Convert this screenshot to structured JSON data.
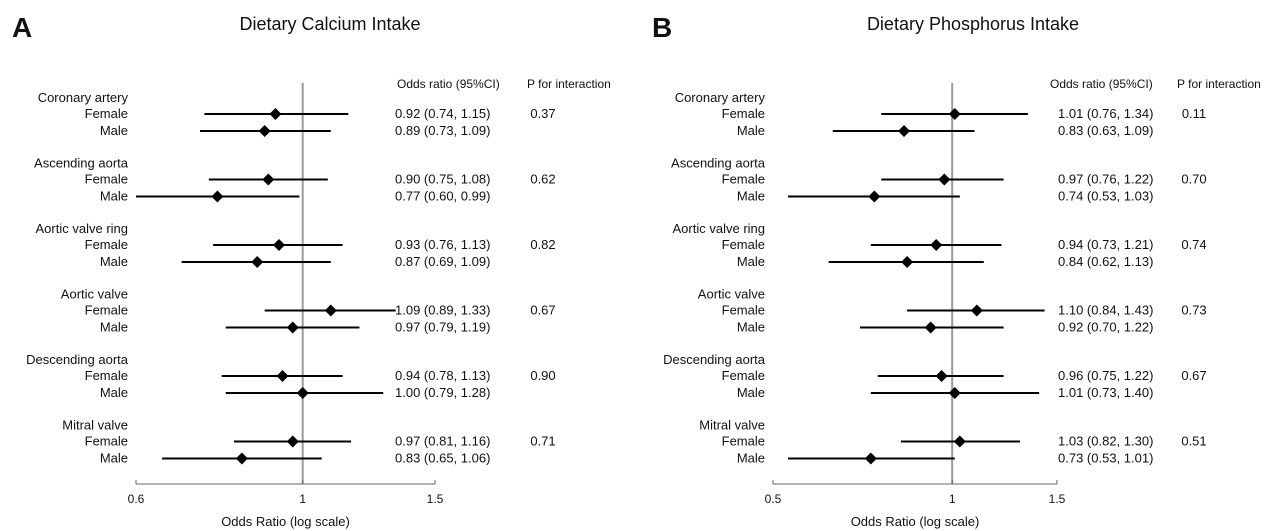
{
  "chart_data": [
    {
      "type": "forest",
      "letter": "A",
      "title": "Dietary Calcium Intake",
      "xlabel": "Odds Ratio (log scale)",
      "xscale": "log",
      "xlim": [
        0.6,
        1.5
      ],
      "xticks": [
        0.6,
        1,
        1.5
      ],
      "xtick_labels": [
        "0.6",
        "1",
        "1.5"
      ],
      "reference_line": 1,
      "header_or": "Odds ratio (95%CI)",
      "header_p": "P for interaction",
      "groups": [
        {
          "name": "Coronary artery",
          "p": "0.37",
          "rows": [
            {
              "label": "Female",
              "or": 0.92,
              "lo": 0.74,
              "hi": 1.15,
              "text": "0.92 (0.74, 1.15)"
            },
            {
              "label": "Male",
              "or": 0.89,
              "lo": 0.73,
              "hi": 1.09,
              "text": "0.89 (0.73, 1.09)"
            }
          ]
        },
        {
          "name": "Ascending aorta",
          "p": "0.62",
          "rows": [
            {
              "label": "Female",
              "or": 0.9,
              "lo": 0.75,
              "hi": 1.08,
              "text": "0.90 (0.75, 1.08)"
            },
            {
              "label": "Male",
              "or": 0.77,
              "lo": 0.6,
              "hi": 0.99,
              "text": "0.77 (0.60, 0.99)"
            }
          ]
        },
        {
          "name": "Aortic valve ring",
          "p": "0.82",
          "rows": [
            {
              "label": "Female",
              "or": 0.93,
              "lo": 0.76,
              "hi": 1.13,
              "text": "0.93 (0.76, 1.13)"
            },
            {
              "label": "Male",
              "or": 0.87,
              "lo": 0.69,
              "hi": 1.09,
              "text": "0.87 (0.69, 1.09)"
            }
          ]
        },
        {
          "name": "Aortic valve",
          "p": "0.67",
          "rows": [
            {
              "label": "Female",
              "or": 1.09,
              "lo": 0.89,
              "hi": 1.33,
              "text": "1.09 (0.89, 1.33)"
            },
            {
              "label": "Male",
              "or": 0.97,
              "lo": 0.79,
              "hi": 1.19,
              "text": "0.97 (0.79, 1.19)"
            }
          ]
        },
        {
          "name": "Descending aorta",
          "p": "0.90",
          "rows": [
            {
              "label": "Female",
              "or": 0.94,
              "lo": 0.78,
              "hi": 1.13,
              "text": "0.94 (0.78, 1.13)"
            },
            {
              "label": "Male",
              "or": 1.0,
              "lo": 0.79,
              "hi": 1.28,
              "text": "1.00 (0.79, 1.28)"
            }
          ]
        },
        {
          "name": "Mitral valve",
          "p": "0.71",
          "rows": [
            {
              "label": "Female",
              "or": 0.97,
              "lo": 0.81,
              "hi": 1.16,
              "text": "0.97 (0.81, 1.16)"
            },
            {
              "label": "Male",
              "or": 0.83,
              "lo": 0.65,
              "hi": 1.06,
              "text": "0.83 (0.65, 1.06)"
            }
          ]
        }
      ]
    },
    {
      "type": "forest",
      "letter": "B",
      "title": "Dietary Phosphorus Intake",
      "xlabel": "Odds Ratio (log scale)",
      "xscale": "log",
      "xlim": [
        0.5,
        1.5
      ],
      "xticks": [
        0.5,
        1,
        1.5
      ],
      "xtick_labels": [
        "0.5",
        "1",
        "1.5"
      ],
      "reference_line": 1,
      "header_or": "Odds ratio (95%CI)",
      "header_p": "P for interaction",
      "groups": [
        {
          "name": "Coronary artery",
          "p": "0.11",
          "rows": [
            {
              "label": "Female",
              "or": 1.01,
              "lo": 0.76,
              "hi": 1.34,
              "text": "1.01 (0.76, 1.34)"
            },
            {
              "label": "Male",
              "or": 0.83,
              "lo": 0.63,
              "hi": 1.09,
              "text": "0.83 (0.63, 1.09)"
            }
          ]
        },
        {
          "name": "Ascending aorta",
          "p": "0.70",
          "rows": [
            {
              "label": "Female",
              "or": 0.97,
              "lo": 0.76,
              "hi": 1.22,
              "text": "0.97 (0.76, 1.22)"
            },
            {
              "label": "Male",
              "or": 0.74,
              "lo": 0.53,
              "hi": 1.03,
              "text": "0.74 (0.53, 1.03)"
            }
          ]
        },
        {
          "name": "Aortic valve ring",
          "p": "0.74",
          "rows": [
            {
              "label": "Female",
              "or": 0.94,
              "lo": 0.73,
              "hi": 1.21,
              "text": "0.94 (0.73, 1.21)"
            },
            {
              "label": "Male",
              "or": 0.84,
              "lo": 0.62,
              "hi": 1.13,
              "text": "0.84 (0.62, 1.13)"
            }
          ]
        },
        {
          "name": "Aortic valve",
          "p": "0.73",
          "rows": [
            {
              "label": "Female",
              "or": 1.1,
              "lo": 0.84,
              "hi": 1.43,
              "text": "1.10 (0.84, 1.43)"
            },
            {
              "label": "Male",
              "or": 0.92,
              "lo": 0.7,
              "hi": 1.22,
              "text": "0.92 (0.70, 1.22)"
            }
          ]
        },
        {
          "name": "Descending aorta",
          "p": "0.67",
          "rows": [
            {
              "label": "Female",
              "or": 0.96,
              "lo": 0.75,
              "hi": 1.22,
              "text": "0.96 (0.75, 1.22)"
            },
            {
              "label": "Male",
              "or": 1.01,
              "lo": 0.73,
              "hi": 1.4,
              "text": "1.01 (0.73, 1.40)"
            }
          ]
        },
        {
          "name": "Mitral valve",
          "p": "0.51",
          "rows": [
            {
              "label": "Female",
              "or": 1.03,
              "lo": 0.82,
              "hi": 1.3,
              "text": "1.03 (0.82, 1.30)"
            },
            {
              "label": "Male",
              "or": 0.73,
              "lo": 0.53,
              "hi": 1.01,
              "text": "0.73 (0.53, 1.01)"
            }
          ]
        }
      ]
    }
  ]
}
